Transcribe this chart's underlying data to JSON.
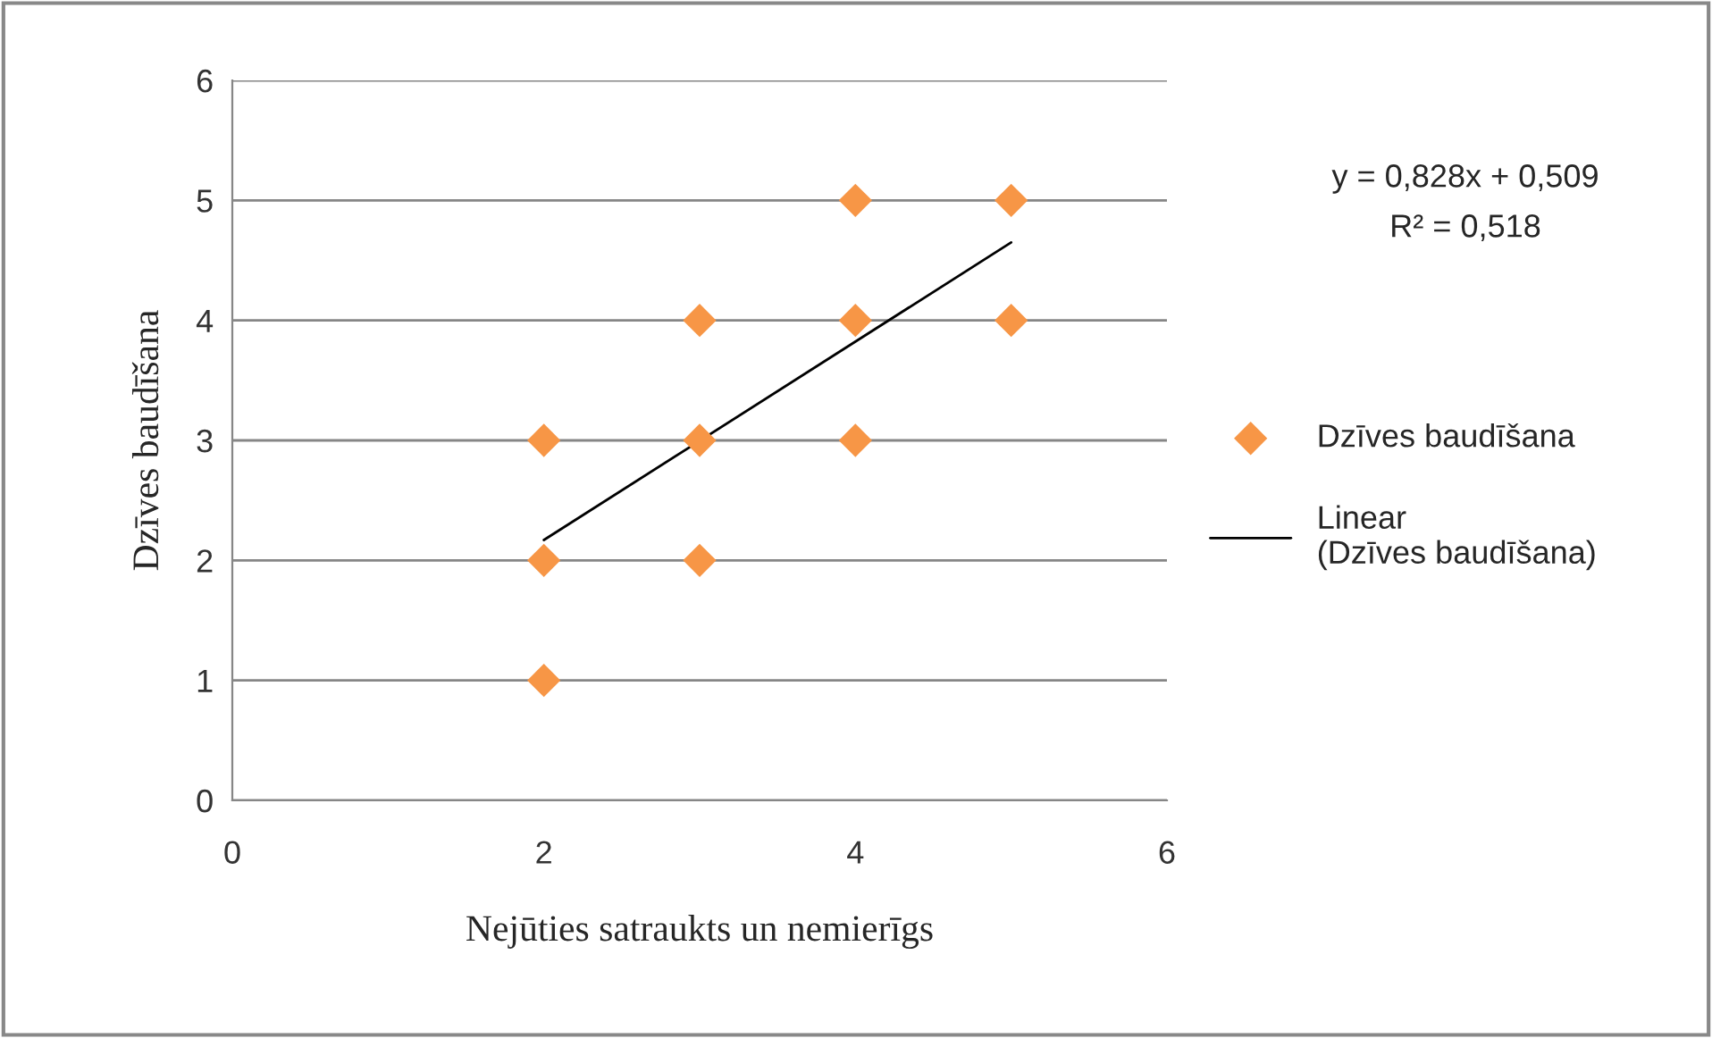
{
  "chart_data": {
    "type": "scatter",
    "xlabel": "Nejūties satraukts un nemierīgs",
    "ylabel": "Dzīves baudīšana",
    "series": [
      {
        "name": "Dzīves baudīšana",
        "color": "#f79646",
        "marker": "diamond",
        "x": [
          2,
          2,
          2,
          3,
          3,
          3,
          4,
          4,
          4,
          5,
          5
        ],
        "values": [
          3,
          2,
          1,
          4,
          3,
          2,
          5,
          4,
          3,
          5,
          4
        ]
      },
      {
        "name": "Linear (Dzīves baudīšana)",
        "type": "line",
        "color": "#000000",
        "marker": "none",
        "line_style": "solid",
        "x": [
          2,
          5
        ],
        "values": [
          2.17,
          4.65
        ]
      }
    ],
    "annotations": [
      "y = 0,828x + 0,509",
      "R² = 0,518"
    ],
    "xlim": [
      0,
      6
    ],
    "xticks": [
      0,
      2,
      4,
      6
    ],
    "ylim": [
      0,
      6
    ],
    "yticks": [
      0,
      1,
      2,
      3,
      4,
      5,
      6
    ],
    "grid": "y",
    "legend": "right"
  }
}
